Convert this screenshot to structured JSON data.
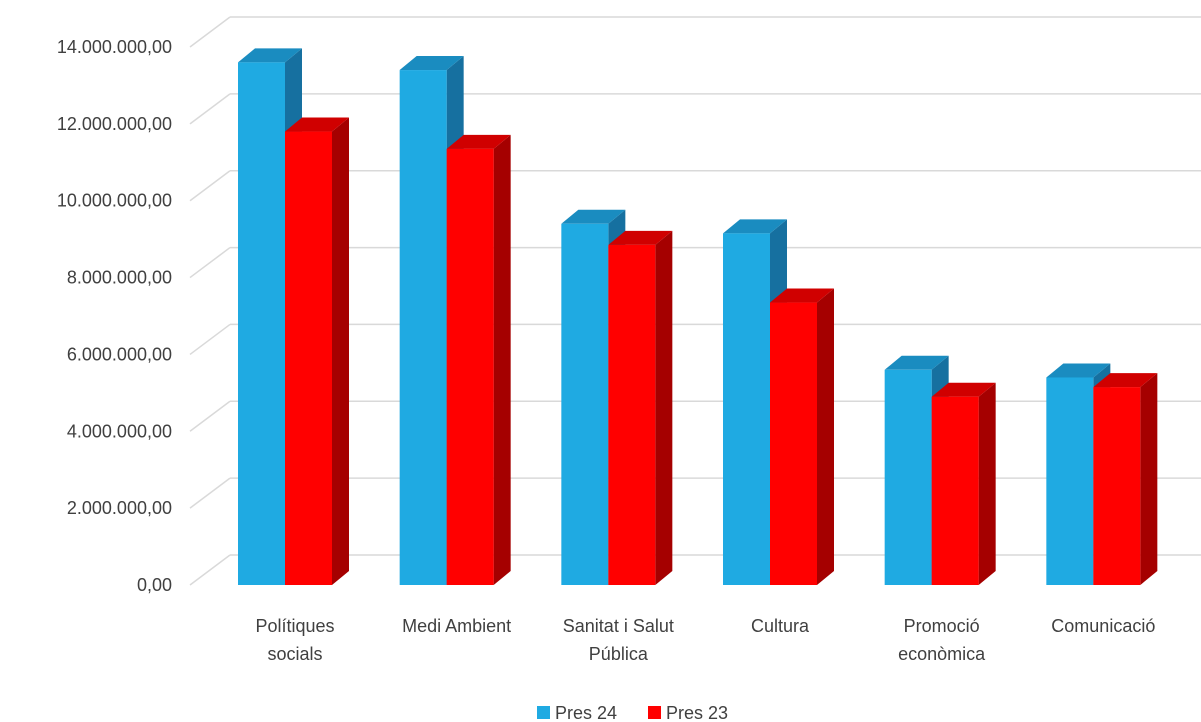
{
  "chart_data": {
    "type": "bar",
    "style": "3d-clustered-column",
    "categories": [
      [
        "Polítiques",
        "socials"
      ],
      [
        "Medi Ambient"
      ],
      [
        "Sanitat i Salut",
        "Pública"
      ],
      [
        "Cultura"
      ],
      [
        "Promoció",
        "econòmica"
      ],
      [
        "Comunicació"
      ]
    ],
    "series": [
      {
        "name": "Pres 24",
        "color": "#1FAAE2",
        "side_color": "#1670A0",
        "top_color": "#1A8CC0",
        "values": [
          13600000,
          13400000,
          9400000,
          9150000,
          5600000,
          5400000
        ]
      },
      {
        "name": "Pres 23",
        "color": "#FF0000",
        "side_color": "#A50000",
        "top_color": "#D00000",
        "values": [
          11800000,
          11350000,
          8850000,
          7350000,
          4900000,
          5150000
        ]
      }
    ],
    "ylim": [
      0,
      14000000
    ],
    "yticks": [
      "0,00",
      "2.000.000,00",
      "4.000.000,00",
      "6.000.000,00",
      "8.000.000,00",
      "10.000.000,00",
      "12.000.000,00",
      "14.000.000,00"
    ],
    "grid": true,
    "legend_position": "bottom",
    "title": "",
    "xlabel": "",
    "ylabel": ""
  }
}
